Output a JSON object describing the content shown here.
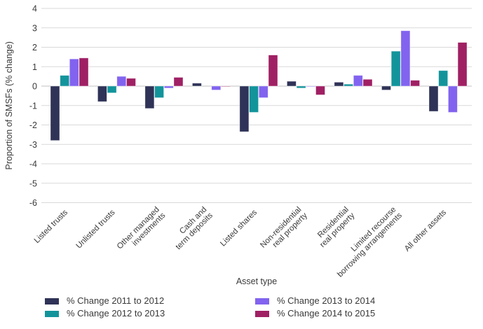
{
  "page": {
    "background": "#FFFFFF"
  },
  "colors": {
    "series_navy": "#2F3357",
    "series_teal": "#13949B",
    "series_purple": "#8163EF",
    "series_magenta": "#A02064",
    "gridline": "#D9D9D9",
    "zero_line": "#C0C0C0",
    "text": "#3A3A3A"
  },
  "chart_data": {
    "type": "bar",
    "title": "",
    "xlabel": "Asset type",
    "ylabel": "Proportion of SMSFs (% change)",
    "ylim": [
      -6,
      4
    ],
    "ytick_values": [
      4,
      3,
      2,
      1,
      0,
      -1,
      -2,
      -3,
      -4,
      -5,
      -6
    ],
    "grid": true,
    "legend_position": "bottom, two columns",
    "categories": [
      "Listed trusts",
      "Unlisted trusts",
      "Other managed investments",
      "Cash and term deposits",
      "Listed shares",
      "Non-residential real property",
      "Residential real property",
      "Limited recourse borrowing arrangements",
      "All other assets"
    ],
    "category_label_lines": [
      [
        "Listed trusts"
      ],
      [
        "Unlisted trusts"
      ],
      [
        "Other managed",
        "investments"
      ],
      [
        "Cash and",
        "term deposits"
      ],
      [
        "Listed shares"
      ],
      [
        "Non-residential",
        "real property"
      ],
      [
        "Residential",
        "real property"
      ],
      [
        "Limited recourse",
        "borrowing arrangements"
      ],
      [
        "All other assets"
      ]
    ],
    "series": [
      {
        "name": "% Change 2011 to 2012",
        "color": "#2F3357",
        "values": [
          -2.8,
          -0.8,
          -1.15,
          0.15,
          -2.35,
          0.25,
          0.2,
          -0.2,
          -1.3
        ]
      },
      {
        "name": "% Change 2012 to 2013",
        "color": "#13949B",
        "values": [
          0.55,
          -0.35,
          -0.6,
          0,
          -1.35,
          -0.1,
          0.1,
          1.8,
          0.8
        ]
      },
      {
        "name": "% Change 2013 to 2014",
        "color": "#8163EF",
        "values": [
          1.4,
          0.5,
          -0.1,
          -0.2,
          -0.6,
          -0.03,
          0.55,
          2.85,
          -1.35
        ]
      },
      {
        "name": "% Change 2014 to 2015",
        "color": "#A02064",
        "values": [
          1.45,
          0.4,
          0.45,
          -0.02,
          1.6,
          -0.45,
          0.35,
          0.3,
          2.25
        ]
      }
    ]
  }
}
